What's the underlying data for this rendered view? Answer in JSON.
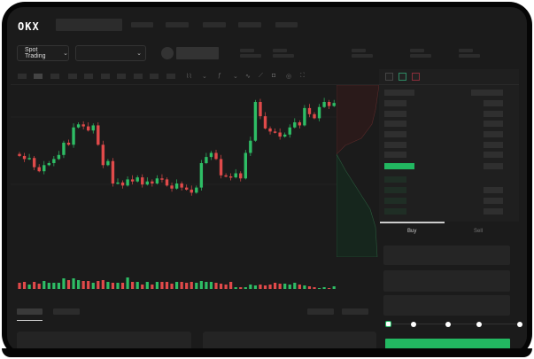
{
  "header": {
    "logo": "OKX"
  },
  "toolbar": {
    "market_select": "Spot Trading",
    "pair_select": ""
  },
  "trade": {
    "buy_tab": "Buy",
    "sell_tab": "Sell",
    "slider_percent": 0
  },
  "colors": {
    "up": "#2ebd65",
    "down": "#e04a4a",
    "background": "#1b1b1b",
    "accent": "#22b861"
  },
  "chart": {
    "type": "candlestick",
    "candles": [
      [
        49,
        47
      ],
      [
        47,
        44
      ],
      [
        44,
        45
      ],
      [
        45,
        36
      ],
      [
        36,
        32
      ],
      [
        32,
        38
      ],
      [
        38,
        40
      ],
      [
        40,
        44
      ],
      [
        44,
        48
      ],
      [
        48,
        60
      ],
      [
        60,
        58
      ],
      [
        58,
        75
      ],
      [
        75,
        78
      ],
      [
        78,
        76
      ],
      [
        76,
        72
      ],
      [
        72,
        77
      ],
      [
        77,
        58
      ],
      [
        58,
        38
      ],
      [
        38,
        42
      ],
      [
        42,
        20
      ],
      [
        20,
        21
      ],
      [
        21,
        18
      ],
      [
        18,
        24
      ],
      [
        24,
        22
      ],
      [
        22,
        26
      ],
      [
        26,
        19
      ],
      [
        19,
        22
      ],
      [
        22,
        20
      ],
      [
        20,
        25
      ],
      [
        25,
        24
      ],
      [
        24,
        18
      ],
      [
        18,
        15
      ],
      [
        15,
        20
      ],
      [
        20,
        16
      ],
      [
        16,
        14
      ],
      [
        14,
        11
      ],
      [
        11,
        16
      ],
      [
        16,
        40
      ],
      [
        40,
        46
      ],
      [
        46,
        50
      ],
      [
        50,
        44
      ],
      [
        44,
        28
      ],
      [
        28,
        27
      ],
      [
        27,
        26
      ],
      [
        26,
        30
      ],
      [
        30,
        25
      ],
      [
        25,
        50
      ],
      [
        50,
        62
      ],
      [
        62,
        100
      ],
      [
        100,
        86
      ],
      [
        86,
        74
      ],
      [
        74,
        71
      ],
      [
        71,
        70
      ],
      [
        70,
        66
      ],
      [
        66,
        68
      ],
      [
        68,
        75
      ],
      [
        75,
        80
      ],
      [
        80,
        77
      ],
      [
        77,
        94
      ],
      [
        94,
        88
      ],
      [
        88,
        84
      ],
      [
        84,
        95
      ],
      [
        95,
        100
      ],
      [
        100,
        96
      ],
      [
        96,
        99
      ]
    ],
    "volumes": [
      7,
      8,
      5,
      8,
      6,
      9,
      7,
      7,
      7,
      12,
      10,
      12,
      10,
      9,
      9,
      7,
      9,
      10,
      8,
      7,
      7,
      7,
      13,
      8,
      8,
      5,
      8,
      5,
      8,
      8,
      8,
      6,
      8,
      8,
      7,
      8,
      7,
      9,
      8,
      8,
      7,
      6,
      5,
      8,
      2,
      2,
      2,
      5,
      4,
      5,
      4,
      5,
      7,
      6,
      6,
      5,
      7,
      5,
      4,
      3,
      2,
      1,
      2,
      1,
      3
    ]
  }
}
